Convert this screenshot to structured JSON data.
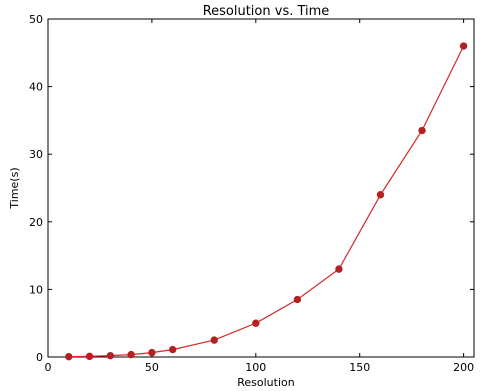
{
  "chart_data": {
    "type": "line",
    "title": "Resolution vs. Time",
    "xlabel": "Resolution",
    "ylabel": "Time(s)",
    "xlim": [
      0,
      205
    ],
    "ylim": [
      0,
      50
    ],
    "xticks": [
      0,
      50,
      100,
      150,
      200
    ],
    "yticks": [
      0,
      10,
      20,
      30,
      40,
      50
    ],
    "grid": false,
    "series": [
      {
        "color": "#d62728",
        "marker_color": "#b22222",
        "x": [
          10,
          20,
          30,
          40,
          50,
          60,
          80,
          100,
          120,
          140,
          160,
          180,
          200
        ],
        "y": [
          0.05,
          0.1,
          0.2,
          0.35,
          0.65,
          1.1,
          2.5,
          5.0,
          8.5,
          13.0,
          24.0,
          33.5,
          46.0
        ]
      }
    ]
  }
}
